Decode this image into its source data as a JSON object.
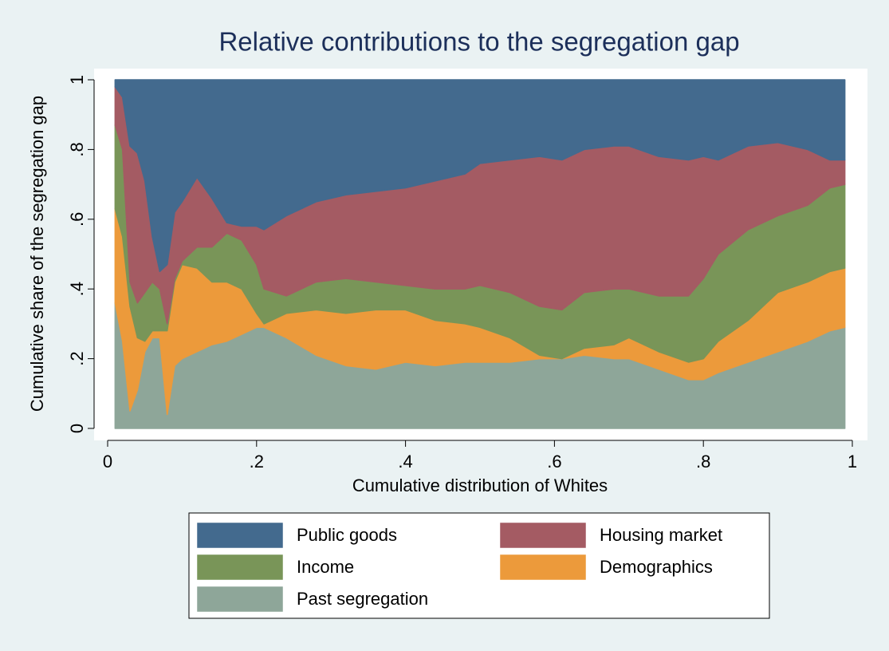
{
  "chart_data": {
    "type": "stacked_area",
    "title": "Relative contributions to the segregation gap",
    "x_label": "Cumulative distribution of Whites",
    "y_label": "Cumulative share of the segregation gap",
    "x": [
      0.01,
      0.02,
      0.03,
      0.04,
      0.05,
      0.06,
      0.07,
      0.08,
      0.09,
      0.1,
      0.12,
      0.14,
      0.16,
      0.18,
      0.2,
      0.21,
      0.24,
      0.28,
      0.32,
      0.36,
      0.4,
      0.44,
      0.48,
      0.5,
      0.54,
      0.58,
      0.61,
      0.64,
      0.68,
      0.7,
      0.74,
      0.78,
      0.8,
      0.82,
      0.86,
      0.9,
      0.94,
      0.97,
      0.99
    ],
    "series": [
      {
        "name": "Public goods",
        "color": "#436a8e",
        "values": [
          0.02,
          0.05,
          0.19,
          0.21,
          0.29,
          0.45,
          0.55,
          0.53,
          0.38,
          0.35,
          0.28,
          0.34,
          0.41,
          0.42,
          0.42,
          0.43,
          0.39,
          0.35,
          0.33,
          0.32,
          0.31,
          0.29,
          0.27,
          0.24,
          0.23,
          0.22,
          0.23,
          0.2,
          0.19,
          0.19,
          0.22,
          0.23,
          0.22,
          0.23,
          0.19,
          0.18,
          0.2,
          0.23,
          0.23
        ]
      },
      {
        "name": "Housing market",
        "color": "#a45b63",
        "values": [
          0.11,
          0.15,
          0.39,
          0.43,
          0.32,
          0.13,
          0.05,
          0.17,
          0.19,
          0.17,
          0.2,
          0.14,
          0.03,
          0.04,
          0.11,
          0.17,
          0.23,
          0.23,
          0.24,
          0.26,
          0.28,
          0.31,
          0.33,
          0.35,
          0.38,
          0.43,
          0.43,
          0.41,
          0.41,
          0.41,
          0.4,
          0.39,
          0.35,
          0.27,
          0.24,
          0.21,
          0.16,
          0.08,
          0.07
        ]
      },
      {
        "name": "Income",
        "color": "#799558",
        "values": [
          0.24,
          0.25,
          0.07,
          0.1,
          0.14,
          0.14,
          0.12,
          0.02,
          0.01,
          0.01,
          0.06,
          0.1,
          0.14,
          0.14,
          0.14,
          0.1,
          0.05,
          0.08,
          0.1,
          0.08,
          0.07,
          0.09,
          0.1,
          0.12,
          0.13,
          0.14,
          0.14,
          0.16,
          0.16,
          0.14,
          0.16,
          0.19,
          0.23,
          0.25,
          0.26,
          0.22,
          0.22,
          0.24,
          0.24
        ]
      },
      {
        "name": "Demographics",
        "color": "#ec9a3b",
        "values": [
          0.27,
          0.3,
          0.3,
          0.15,
          0.03,
          0.02,
          0.02,
          0.24,
          0.24,
          0.27,
          0.24,
          0.18,
          0.17,
          0.13,
          0.04,
          0.01,
          0.07,
          0.13,
          0.15,
          0.17,
          0.15,
          0.13,
          0.11,
          0.1,
          0.07,
          0.01,
          0.0,
          0.02,
          0.04,
          0.06,
          0.05,
          0.05,
          0.06,
          0.09,
          0.12,
          0.17,
          0.17,
          0.17,
          0.17
        ]
      },
      {
        "name": "Past segregation",
        "color": "#8ea699",
        "values": [
          0.36,
          0.25,
          0.05,
          0.11,
          0.22,
          0.26,
          0.26,
          0.04,
          0.18,
          0.2,
          0.22,
          0.24,
          0.25,
          0.27,
          0.29,
          0.29,
          0.26,
          0.21,
          0.18,
          0.17,
          0.19,
          0.18,
          0.19,
          0.19,
          0.19,
          0.2,
          0.2,
          0.21,
          0.2,
          0.2,
          0.17,
          0.14,
          0.14,
          0.16,
          0.19,
          0.22,
          0.25,
          0.28,
          0.29
        ]
      }
    ],
    "xlim": [
      0,
      1
    ],
    "xticks": [
      0,
      {
        "value": 0.2,
        "label": ".2"
      },
      {
        "value": 0.4,
        "label": ".4"
      },
      {
        "value": 0.6,
        "label": ".6"
      },
      {
        "value": 0.8,
        "label": ".8"
      },
      1
    ],
    "ylim": [
      0,
      1
    ],
    "yticks": [
      0,
      {
        "value": 0.2,
        "label": ".2"
      },
      {
        "value": 0.4,
        "label": ".4"
      },
      {
        "value": 0.6,
        "label": ".6"
      },
      {
        "value": 0.8,
        "label": ".8"
      },
      1
    ]
  }
}
